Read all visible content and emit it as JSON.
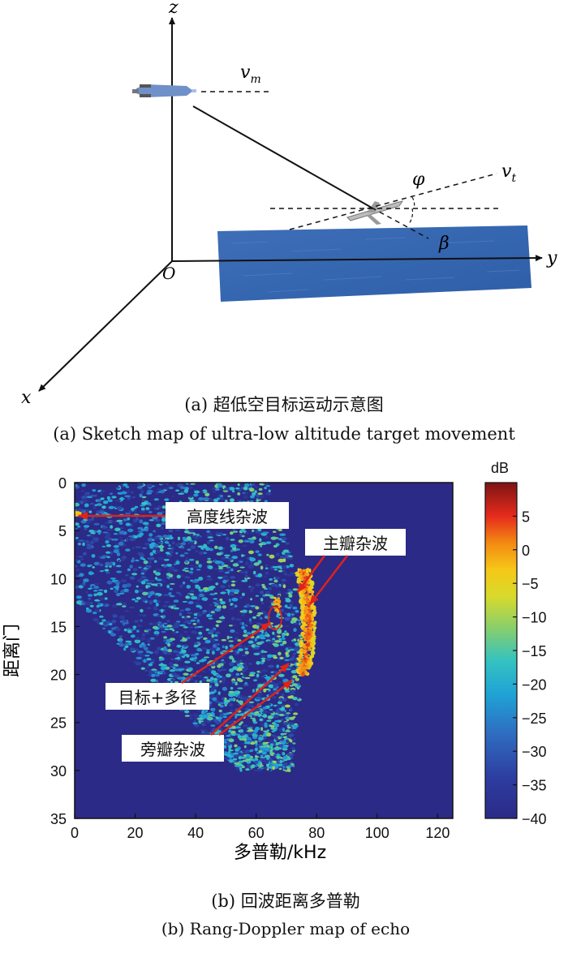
{
  "figure_a": {
    "axis_labels": {
      "z": "z",
      "y": "y",
      "x": "x",
      "origin": "O"
    },
    "symbols": {
      "vm": "v",
      "vm_sub": "m",
      "vt": "v",
      "vt_sub": "t",
      "phi": "φ",
      "beta": "β"
    },
    "caption_cn": "(a) 超低空目标运动示意图",
    "caption_en": "(a) Sketch map of ultra-low altitude target movement"
  },
  "figure_b": {
    "caption_cn": "(b) 回波距离多普勒",
    "caption_en": "(b) Rang-Doppler map of echo",
    "annotations": {
      "altitude_clutter": "高度线杂波",
      "mainlobe_clutter": "主瓣杂波",
      "target_multipath": "目标+多径",
      "sidelobe_clutter": "旁瓣杂波"
    },
    "colorbar_unit": "dB"
  },
  "chart_data": {
    "type": "heatmap",
    "title": "",
    "xlabel": "多普勒/kHz",
    "ylabel": "距离门",
    "xlim": [
      0,
      125
    ],
    "ylim": [
      35,
      0
    ],
    "x_ticks": [
      0,
      20,
      40,
      60,
      80,
      100,
      120
    ],
    "y_ticks": [
      0,
      5,
      10,
      15,
      20,
      25,
      30,
      35
    ],
    "colorbar": {
      "label": "dB",
      "range": [
        -40,
        10
      ],
      "ticks": [
        5,
        0,
        -5,
        -10,
        -15,
        -20,
        -25,
        -30,
        -35,
        -40
      ]
    },
    "background_db": -37,
    "regions": [
      {
        "name": "sidelobe clutter band",
        "range_gates": [
          0,
          30
        ],
        "doppler_khz": [
          0,
          78
        ],
        "level_db": -27
      },
      {
        "name": "mainlobe clutter",
        "range_gates": [
          9,
          20
        ],
        "doppler_khz": [
          73,
          78
        ],
        "level_db": 3
      },
      {
        "name": "altitude line clutter",
        "range_gates": [
          3,
          3
        ],
        "doppler_khz": [
          0,
          2
        ],
        "level_db": -5
      },
      {
        "name": "target + multipath",
        "range_gates": [
          12,
          13
        ],
        "doppler_khz": [
          66,
          68
        ],
        "level_db": -3
      }
    ]
  }
}
